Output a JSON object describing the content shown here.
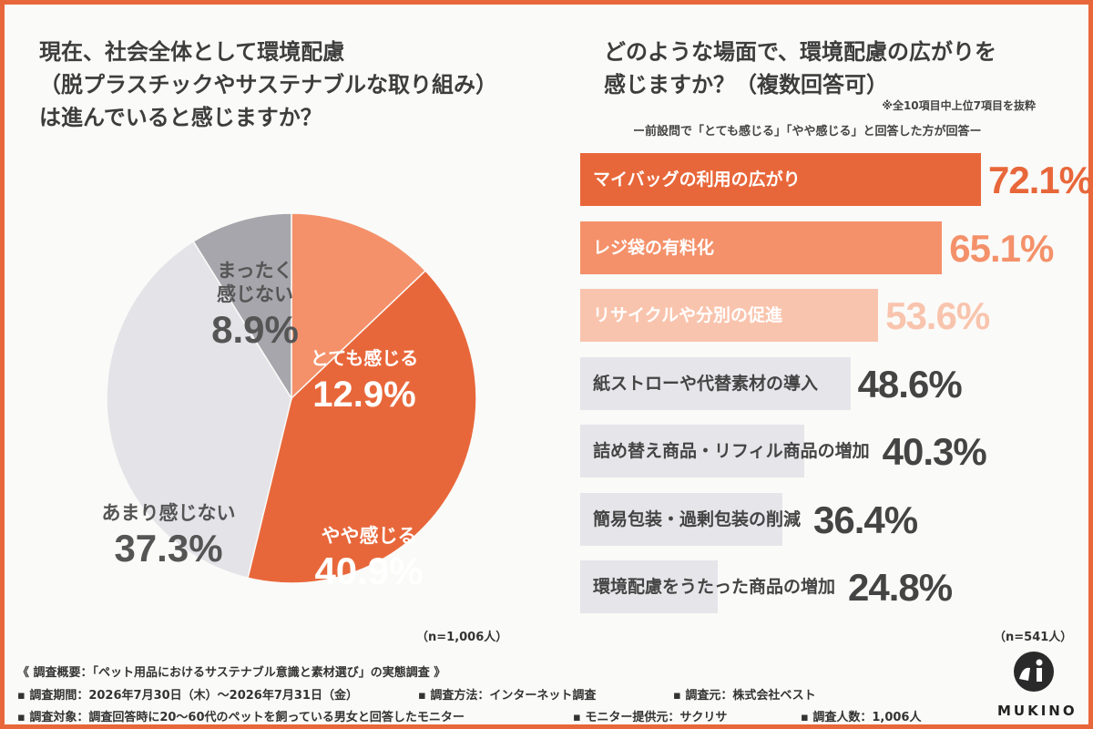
{
  "left_title": [
    "現在、社会全体として環境配慮",
    "（脱プラスチックやサステナブルな取り組み）",
    "は進んでいると感じますか？"
  ],
  "right_title": [
    "どのような場面で、環境配慮の広がりを",
    "感じますか？（複数回答可）"
  ],
  "right_note_top": "※全10項目中上位7項目を抜粋",
  "right_note_sub": "ー前設問で「とても感じる」「やや感じる」と回答した方が回答ー",
  "n_left": "（n=1,006人）",
  "n_right": "（n=541人）",
  "footer": {
    "heading": "《 調査概要：「ペット用品におけるサステナブル意識と素材選び」の実態調査 》",
    "line1": [
      "▪ 調査期間：2026年7月30日（木）〜2026年7月31日（金）",
      "▪ 調査方法：インターネット調査",
      "▪ 調査元：株式会社ベスト"
    ],
    "line2": [
      "▪ 調査対象：調査回答時に20〜60代のペットを飼っている男女と回答したモニター",
      "▪ モニター提供元：サクリサ",
      "▪ 調査人数：1,006人"
    ]
  },
  "logo_text": "MUKINO",
  "chart_data": [
    {
      "type": "pie",
      "slices": [
        {
          "label": "とても感じる",
          "value": 12.9,
          "display": "12.9%",
          "color": "#f4916a",
          "text_color": "#ffffff"
        },
        {
          "label": "やや感じる",
          "value": 40.9,
          "display": "40.9%",
          "color": "#e8673a",
          "text_color": "#ffffff"
        },
        {
          "label": "あまり感じない",
          "value": 37.3,
          "display": "37.3%",
          "color": "#e4e3e8",
          "text_color": "#555555"
        },
        {
          "label": "まったく\n感じない",
          "value": 8.9,
          "display": "8.9%",
          "color": "#a7a6ac",
          "text_color": "#555555"
        }
      ]
    },
    {
      "type": "bar",
      "orientation": "horizontal",
      "xlim": [
        0,
        100
      ],
      "categories": [
        "マイバッグの利用の広がり",
        "レジ袋の有料化",
        "リサイクルや分別の促進",
        "紙ストローや代替素材の導入",
        "詰め替え商品・リフィル商品の増加",
        "簡易包装・過剰包装の削減",
        "環境配慮をうたった商品の増加"
      ],
      "values": [
        72.1,
        65.1,
        53.6,
        48.6,
        40.3,
        36.4,
        24.8
      ],
      "value_labels": [
        "72.1%",
        "65.1%",
        "53.6%",
        "48.6%",
        "40.3%",
        "36.4%",
        "24.8%"
      ],
      "bar_colors": [
        "#e8673a",
        "#f4916a",
        "#f9c4ad",
        "#e6e5e9",
        "#e6e5e9",
        "#e6e5e9",
        "#e6e5e9"
      ],
      "label_colors": [
        "#ffffff",
        "#ffffff",
        "#ffffff",
        "#444444",
        "#444444",
        "#444444",
        "#444444"
      ],
      "value_colors": [
        "#e8673a",
        "#f4916a",
        "#f9c4ad",
        "#444444",
        "#444444",
        "#444444",
        "#444444"
      ]
    }
  ]
}
